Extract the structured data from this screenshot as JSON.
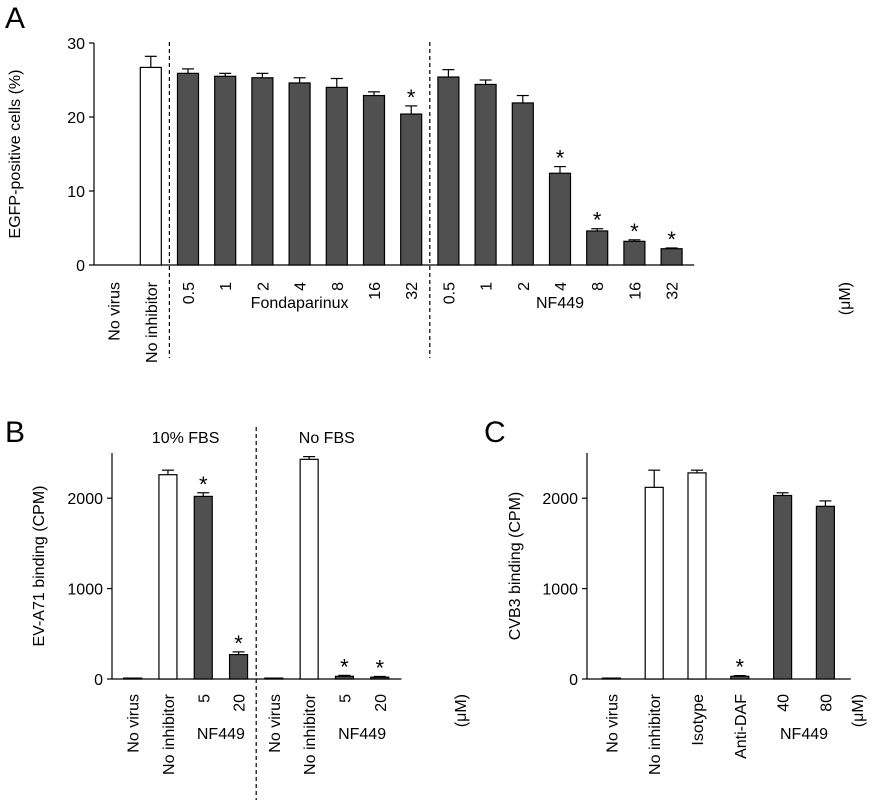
{
  "chart_data": [
    {
      "panel": "A",
      "type": "bar",
      "ylabel": "EGFP-positive cells (%)",
      "ylim": [
        0,
        30
      ],
      "yticks": [
        0,
        10,
        20,
        30
      ],
      "unit_label": "(μM)",
      "categories": [
        "No virus",
        "No inhibitor",
        "0.5",
        "1",
        "2",
        "4",
        "8",
        "16",
        "32",
        "0.5",
        "1",
        "2",
        "4",
        "8",
        "16",
        "32"
      ],
      "values": [
        0,
        26.7,
        25.9,
        25.5,
        25.3,
        24.6,
        24.0,
        22.9,
        20.4,
        25.4,
        24.4,
        21.9,
        12.4,
        4.6,
        3.2,
        2.2
      ],
      "errors": [
        0,
        1.5,
        0.6,
        0.4,
        0.6,
        0.7,
        1.2,
        0.5,
        1.1,
        1.0,
        0.6,
        1.0,
        0.9,
        0.3,
        0.2,
        0.1
      ],
      "fills": [
        "white",
        "white",
        "dark",
        "dark",
        "dark",
        "dark",
        "dark",
        "dark",
        "dark",
        "dark",
        "dark",
        "dark",
        "dark",
        "dark",
        "dark",
        "dark"
      ],
      "significant": [
        false,
        false,
        false,
        false,
        false,
        false,
        false,
        false,
        true,
        false,
        false,
        false,
        true,
        true,
        true,
        true
      ],
      "groups": [
        {
          "label": "Fondaparinux",
          "start": 2,
          "end": 8
        },
        {
          "label": "NF449",
          "start": 9,
          "end": 15
        }
      ],
      "dividers": [
        1.5,
        8.5
      ],
      "grid": false
    },
    {
      "panel": "B",
      "type": "bar",
      "ylabel": "EV-A71 binding (CPM)",
      "ylim": [
        0,
        2500
      ],
      "yticks": [
        0,
        1000,
        2000
      ],
      "unit_label": "(μM)",
      "categories": [
        "No virus",
        "No inhibitor",
        "5",
        "20",
        "No virus",
        "No inhibitor",
        "5",
        "20"
      ],
      "values": [
        10,
        2260,
        2020,
        270,
        10,
        2430,
        30,
        20
      ],
      "errors": [
        0,
        50,
        40,
        30,
        0,
        30,
        10,
        8
      ],
      "fills": [
        "white",
        "white",
        "dark",
        "dark",
        "white",
        "white",
        "dark",
        "dark"
      ],
      "significant": [
        false,
        false,
        true,
        true,
        false,
        false,
        true,
        true
      ],
      "top_groups": [
        {
          "label": "10% FBS",
          "start": 0,
          "end": 3
        },
        {
          "label": "No FBS",
          "start": 4,
          "end": 7
        }
      ],
      "groups": [
        {
          "label": "NF449",
          "start": 2,
          "end": 3
        },
        {
          "label": "NF449",
          "start": 6,
          "end": 7
        }
      ],
      "dividers": [
        3.5
      ],
      "grid": false
    },
    {
      "panel": "C",
      "type": "bar",
      "ylabel": "CVB3 binding (CPM)",
      "ylim": [
        0,
        2500
      ],
      "yticks": [
        0,
        1000,
        2000
      ],
      "unit_label": "(μM)",
      "categories": [
        "No virus",
        "No inhibitor",
        "Isotype",
        "Anti-DAF",
        "40",
        "80"
      ],
      "values": [
        10,
        2120,
        2280,
        30,
        2030,
        1910
      ],
      "errors": [
        0,
        190,
        30,
        8,
        30,
        60
      ],
      "fills": [
        "white",
        "white",
        "white",
        "dark",
        "dark",
        "dark"
      ],
      "significant": [
        false,
        false,
        false,
        true,
        false,
        false
      ],
      "groups": [
        {
          "label": "NF449",
          "start": 4,
          "end": 5
        }
      ],
      "dividers": [],
      "grid": false
    }
  ]
}
